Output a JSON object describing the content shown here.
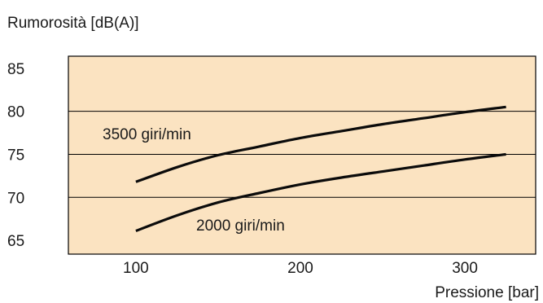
{
  "chart_data": {
    "type": "line",
    "ylabel": "Rumorosità [dB(A)]",
    "xlabel": "Pressione [bar]",
    "xlim": [
      59,
      343
    ],
    "ylim": [
      63.4,
      86.4
    ],
    "xticks": [
      100,
      200,
      300
    ],
    "yticks": [
      65,
      70,
      75,
      80,
      85
    ],
    "ytick_labels": [
      "65",
      "70",
      "75",
      "80",
      "85"
    ],
    "xtick_labels": [
      "100",
      "200",
      "300"
    ],
    "gridlines_y": [
      70,
      75,
      80
    ],
    "colors": {
      "plot_bg": "#fbe3c1",
      "line": "#0b0b0b",
      "grid": "#000000"
    },
    "series": [
      {
        "name": "3500 giri/min",
        "x": [
          100,
          125,
          150,
          175,
          200,
          225,
          250,
          275,
          300,
          325
        ],
        "y": [
          71.8,
          73.5,
          74.9,
          75.9,
          76.9,
          77.7,
          78.5,
          79.2,
          79.9,
          80.5
        ]
      },
      {
        "name": "2000 giri/min",
        "x": [
          100,
          125,
          150,
          175,
          200,
          225,
          250,
          275,
          300,
          325
        ],
        "y": [
          66.1,
          67.9,
          69.4,
          70.5,
          71.5,
          72.3,
          73.0,
          73.7,
          74.4,
          75.0
        ]
      }
    ]
  }
}
